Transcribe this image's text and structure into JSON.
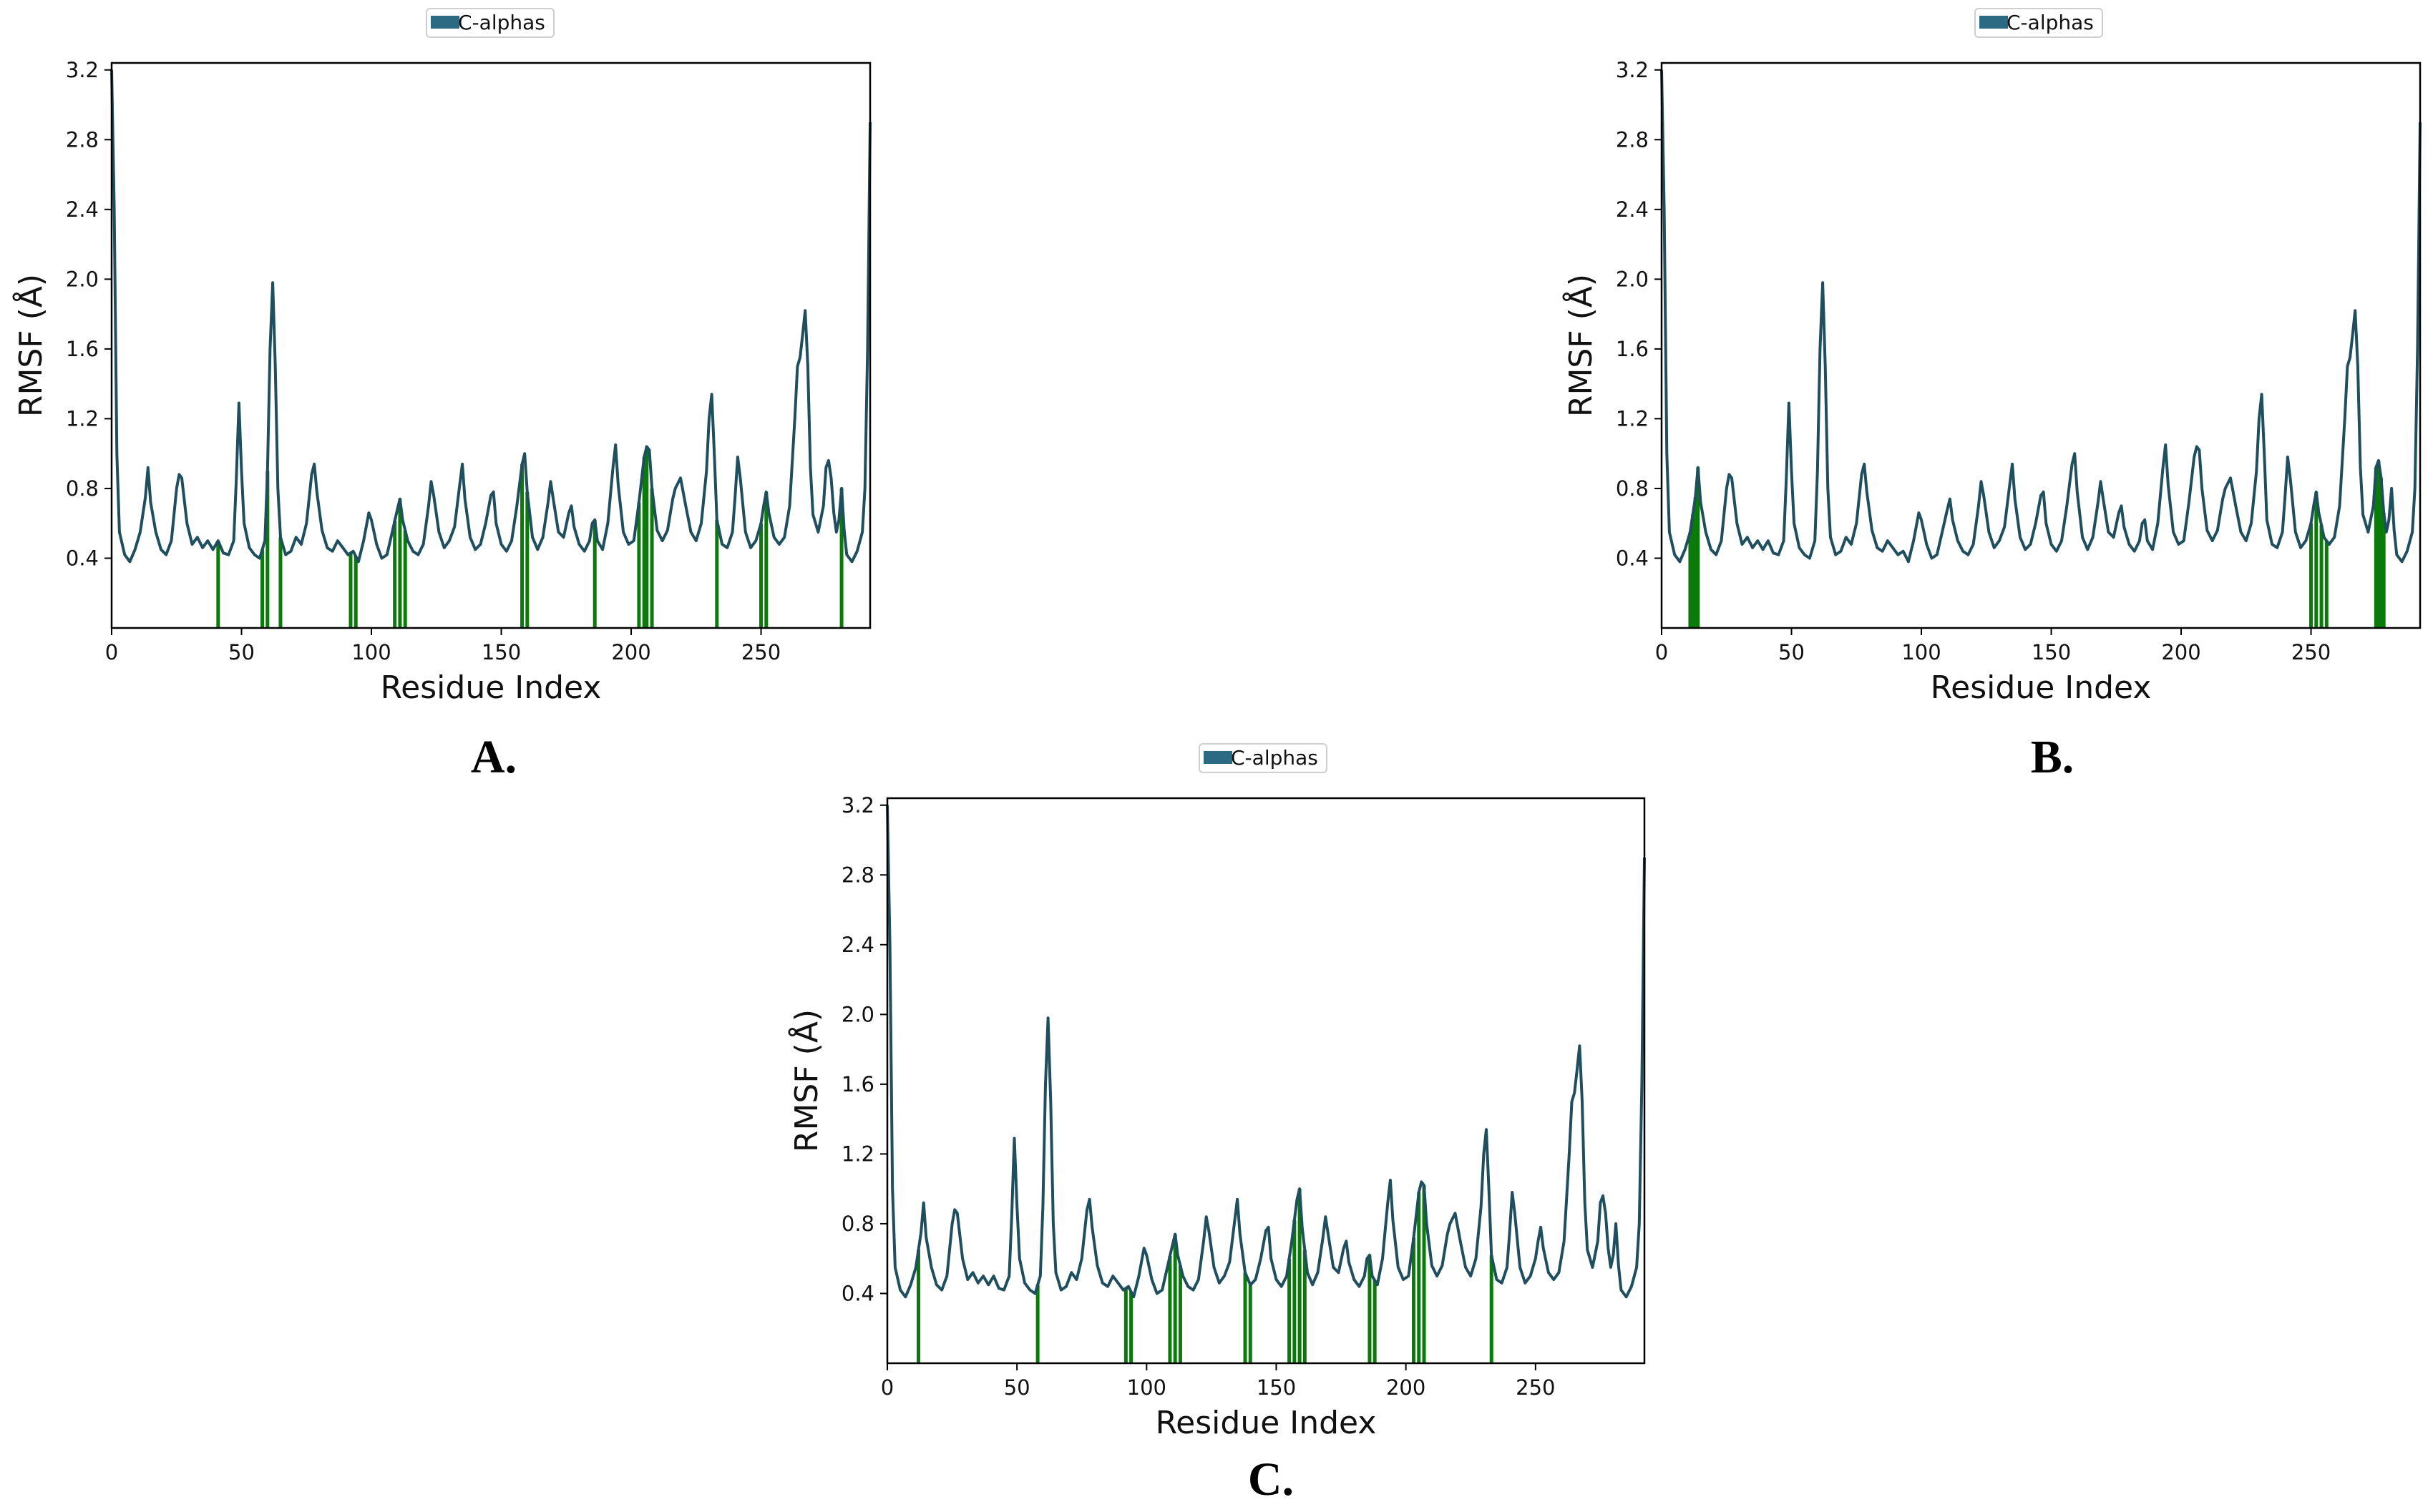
{
  "colors": {
    "line": "#1f4e5f",
    "contact": "#0a7a0a",
    "legend_patch": "#2b6a82"
  },
  "chart_data": [
    {
      "id": "A",
      "type": "line",
      "panel_label": "A.",
      "legend": [
        "C-alphas"
      ],
      "xlabel": "Residue Index",
      "ylabel": "RMSF (Å)",
      "xlim": [
        0,
        292
      ],
      "ylim": [
        0,
        3.24
      ],
      "xticks": [
        0,
        50,
        100,
        150,
        200,
        250
      ],
      "yticks": [
        0.4,
        0.8,
        1.2,
        1.6,
        2.0,
        2.4,
        2.8,
        3.2
      ],
      "ytick_labels": [
        "0.4",
        "0.8",
        "1.2",
        "1.6",
        "2.0",
        "2.4",
        "2.8",
        "3.2"
      ],
      "contact_residues": [
        41,
        58,
        60,
        65,
        92,
        94,
        109,
        111,
        113,
        158,
        160,
        186,
        203,
        205,
        206,
        208,
        233,
        250,
        252,
        281
      ]
    },
    {
      "id": "B",
      "type": "line",
      "panel_label": "B.",
      "legend": [
        "C-alphas"
      ],
      "xlabel": "Residue Index",
      "ylabel": "RMSF (Å)",
      "xlim": [
        0,
        292
      ],
      "ylim": [
        0,
        3.24
      ],
      "xticks": [
        0,
        50,
        100,
        150,
        200,
        250
      ],
      "yticks": [
        0.4,
        0.8,
        1.2,
        1.6,
        2.0,
        2.4,
        2.8,
        3.2
      ],
      "ytick_labels": [
        "0.4",
        "0.8",
        "1.2",
        "1.6",
        "2.0",
        "2.4",
        "2.8",
        "3.2"
      ],
      "contact_residues": [
        11,
        12,
        13,
        14,
        250,
        252,
        254,
        256,
        275,
        276,
        277,
        278
      ]
    },
    {
      "id": "C",
      "type": "line",
      "panel_label": "C.",
      "legend": [
        "C-alphas"
      ],
      "xlabel": "Residue Index",
      "ylabel": "RMSF (Å)",
      "xlim": [
        0,
        292
      ],
      "ylim": [
        0,
        3.24
      ],
      "xticks": [
        0,
        50,
        100,
        150,
        200,
        250
      ],
      "yticks": [
        0.4,
        0.8,
        1.2,
        1.6,
        2.0,
        2.4,
        2.8,
        3.2
      ],
      "ytick_labels": [
        "0.4",
        "0.8",
        "1.2",
        "1.6",
        "2.0",
        "2.4",
        "2.8",
        "3.2"
      ],
      "contact_residues": [
        12,
        58,
        92,
        94,
        109,
        111,
        113,
        138,
        140,
        155,
        157,
        159,
        161,
        186,
        188,
        203,
        205,
        207,
        233
      ]
    }
  ],
  "rmsf_profile": {
    "description_points": "shared C-alpha RMSF trace (residue, RMSF Å)",
    "points": [
      [
        0,
        3.2
      ],
      [
        1,
        2.4
      ],
      [
        2,
        1.0
      ],
      [
        3,
        0.55
      ],
      [
        5,
        0.42
      ],
      [
        7,
        0.38
      ],
      [
        9,
        0.45
      ],
      [
        11,
        0.55
      ],
      [
        13,
        0.75
      ],
      [
        14,
        0.92
      ],
      [
        15,
        0.72
      ],
      [
        17,
        0.55
      ],
      [
        19,
        0.45
      ],
      [
        21,
        0.42
      ],
      [
        23,
        0.5
      ],
      [
        25,
        0.8
      ],
      [
        26,
        0.88
      ],
      [
        27,
        0.86
      ],
      [
        29,
        0.6
      ],
      [
        31,
        0.48
      ],
      [
        33,
        0.52
      ],
      [
        35,
        0.46
      ],
      [
        37,
        0.5
      ],
      [
        39,
        0.45
      ],
      [
        41,
        0.5
      ],
      [
        43,
        0.43
      ],
      [
        45,
        0.42
      ],
      [
        47,
        0.5
      ],
      [
        48,
        0.85
      ],
      [
        49,
        1.29
      ],
      [
        50,
        0.9
      ],
      [
        51,
        0.6
      ],
      [
        53,
        0.46
      ],
      [
        55,
        0.42
      ],
      [
        57,
        0.4
      ],
      [
        59,
        0.5
      ],
      [
        60,
        0.9
      ],
      [
        61,
        1.6
      ],
      [
        62,
        1.98
      ],
      [
        63,
        1.5
      ],
      [
        64,
        0.8
      ],
      [
        65,
        0.52
      ],
      [
        67,
        0.42
      ],
      [
        69,
        0.44
      ],
      [
        71,
        0.52
      ],
      [
        73,
        0.48
      ],
      [
        75,
        0.6
      ],
      [
        77,
        0.88
      ],
      [
        78,
        0.94
      ],
      [
        79,
        0.78
      ],
      [
        81,
        0.56
      ],
      [
        83,
        0.46
      ],
      [
        85,
        0.44
      ],
      [
        87,
        0.5
      ],
      [
        89,
        0.46
      ],
      [
        91,
        0.42
      ],
      [
        93,
        0.44
      ],
      [
        95,
        0.38
      ],
      [
        97,
        0.5
      ],
      [
        99,
        0.66
      ],
      [
        100,
        0.62
      ],
      [
        102,
        0.48
      ],
      [
        104,
        0.4
      ],
      [
        106,
        0.42
      ],
      [
        108,
        0.55
      ],
      [
        110,
        0.68
      ],
      [
        111,
        0.74
      ],
      [
        112,
        0.62
      ],
      [
        114,
        0.5
      ],
      [
        116,
        0.44
      ],
      [
        118,
        0.42
      ],
      [
        120,
        0.48
      ],
      [
        122,
        0.7
      ],
      [
        123,
        0.84
      ],
      [
        124,
        0.76
      ],
      [
        126,
        0.55
      ],
      [
        128,
        0.46
      ],
      [
        130,
        0.5
      ],
      [
        132,
        0.58
      ],
      [
        134,
        0.82
      ],
      [
        135,
        0.94
      ],
      [
        136,
        0.74
      ],
      [
        138,
        0.52
      ],
      [
        140,
        0.45
      ],
      [
        142,
        0.48
      ],
      [
        144,
        0.6
      ],
      [
        146,
        0.76
      ],
      [
        147,
        0.78
      ],
      [
        148,
        0.6
      ],
      [
        150,
        0.48
      ],
      [
        152,
        0.44
      ],
      [
        154,
        0.5
      ],
      [
        156,
        0.7
      ],
      [
        158,
        0.94
      ],
      [
        159,
        1.0
      ],
      [
        160,
        0.78
      ],
      [
        162,
        0.52
      ],
      [
        164,
        0.45
      ],
      [
        166,
        0.52
      ],
      [
        168,
        0.72
      ],
      [
        169,
        0.84
      ],
      [
        170,
        0.74
      ],
      [
        172,
        0.55
      ],
      [
        174,
        0.52
      ],
      [
        176,
        0.66
      ],
      [
        177,
        0.7
      ],
      [
        178,
        0.58
      ],
      [
        180,
        0.48
      ],
      [
        182,
        0.44
      ],
      [
        184,
        0.5
      ],
      [
        185,
        0.6
      ],
      [
        186,
        0.62
      ],
      [
        187,
        0.5
      ],
      [
        189,
        0.45
      ],
      [
        191,
        0.6
      ],
      [
        193,
        0.92
      ],
      [
        194,
        1.05
      ],
      [
        195,
        0.82
      ],
      [
        197,
        0.55
      ],
      [
        199,
        0.48
      ],
      [
        201,
        0.5
      ],
      [
        203,
        0.72
      ],
      [
        205,
        0.98
      ],
      [
        206,
        1.04
      ],
      [
        207,
        1.02
      ],
      [
        208,
        0.8
      ],
      [
        210,
        0.56
      ],
      [
        212,
        0.5
      ],
      [
        214,
        0.56
      ],
      [
        216,
        0.74
      ],
      [
        217,
        0.8
      ],
      [
        219,
        0.86
      ],
      [
        221,
        0.7
      ],
      [
        223,
        0.55
      ],
      [
        225,
        0.5
      ],
      [
        227,
        0.6
      ],
      [
        229,
        0.9
      ],
      [
        230,
        1.2
      ],
      [
        231,
        1.34
      ],
      [
        232,
        1.0
      ],
      [
        233,
        0.62
      ],
      [
        235,
        0.48
      ],
      [
        237,
        0.46
      ],
      [
        239,
        0.55
      ],
      [
        240,
        0.75
      ],
      [
        241,
        0.98
      ],
      [
        242,
        0.86
      ],
      [
        244,
        0.55
      ],
      [
        246,
        0.46
      ],
      [
        248,
        0.5
      ],
      [
        250,
        0.6
      ],
      [
        251,
        0.7
      ],
      [
        252,
        0.78
      ],
      [
        253,
        0.66
      ],
      [
        255,
        0.52
      ],
      [
        257,
        0.48
      ],
      [
        259,
        0.52
      ],
      [
        261,
        0.7
      ],
      [
        263,
        1.2
      ],
      [
        264,
        1.5
      ],
      [
        265,
        1.55
      ],
      [
        266,
        1.68
      ],
      [
        267,
        1.82
      ],
      [
        268,
        1.5
      ],
      [
        269,
        0.92
      ],
      [
        270,
        0.65
      ],
      [
        272,
        0.55
      ],
      [
        274,
        0.7
      ],
      [
        275,
        0.92
      ],
      [
        276,
        0.96
      ],
      [
        277,
        0.86
      ],
      [
        278,
        0.66
      ],
      [
        279,
        0.55
      ],
      [
        280,
        0.62
      ],
      [
        281,
        0.8
      ],
      [
        282,
        0.56
      ],
      [
        283,
        0.42
      ],
      [
        285,
        0.38
      ],
      [
        287,
        0.44
      ],
      [
        289,
        0.55
      ],
      [
        290,
        0.8
      ],
      [
        291,
        1.6
      ],
      [
        292,
        2.9
      ]
    ]
  }
}
